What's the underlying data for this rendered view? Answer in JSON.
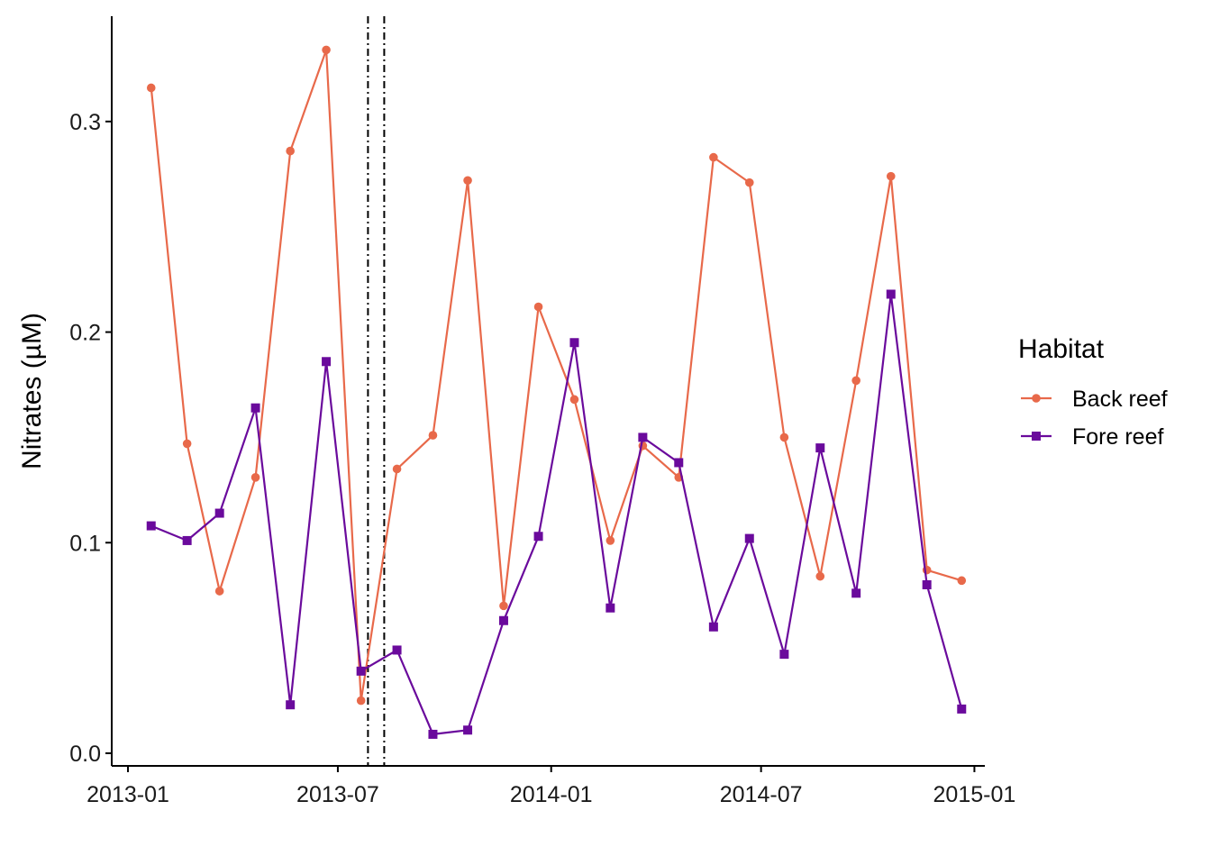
{
  "chart_data": {
    "type": "line",
    "xlabel": "",
    "ylabel": "Nitrates (µM)",
    "ylim": [
      -0.006,
      0.35
    ],
    "xlim": [
      "2012-12-18",
      "2015-01-10"
    ],
    "x_ticks": [
      "2013-01-01",
      "2013-07-01",
      "2014-01-01",
      "2014-07-01",
      "2015-01-01"
    ],
    "x_tick_labels": [
      "2013-01",
      "2013-07",
      "2014-01",
      "2014-07",
      "2015-01"
    ],
    "y_ticks": [
      0.0,
      0.1,
      0.2,
      0.3
    ],
    "y_tick_labels": [
      "0.0",
      "0.1",
      "0.2",
      "0.3"
    ],
    "grid": false,
    "vlines": [
      {
        "date": "2013-07-27",
        "style": "dashdot",
        "color": "#000000"
      },
      {
        "date": "2013-08-10",
        "style": "dashdot",
        "color": "#000000"
      }
    ],
    "legend": {
      "title": "Habitat",
      "position": "right"
    },
    "series": [
      {
        "name": "Back reef",
        "color": "#e8694a",
        "marker": "circle",
        "points": [
          {
            "x": "2013-01-21",
            "y": 0.316
          },
          {
            "x": "2013-02-21",
            "y": 0.147
          },
          {
            "x": "2013-03-21",
            "y": 0.077
          },
          {
            "x": "2013-04-21",
            "y": 0.131
          },
          {
            "x": "2013-05-21",
            "y": 0.286
          },
          {
            "x": "2013-06-21",
            "y": 0.334
          },
          {
            "x": "2013-07-21",
            "y": 0.025
          },
          {
            "x": "2013-08-21",
            "y": 0.135
          },
          {
            "x": "2013-09-21",
            "y": 0.151
          },
          {
            "x": "2013-10-21",
            "y": 0.272
          },
          {
            "x": "2013-11-21",
            "y": 0.07
          },
          {
            "x": "2013-12-21",
            "y": 0.212
          },
          {
            "x": "2014-01-21",
            "y": 0.168
          },
          {
            "x": "2014-02-21",
            "y": 0.101
          },
          {
            "x": "2014-03-21",
            "y": 0.146
          },
          {
            "x": "2014-04-21",
            "y": 0.131
          },
          {
            "x": "2014-05-21",
            "y": 0.283
          },
          {
            "x": "2014-06-21",
            "y": 0.271
          },
          {
            "x": "2014-07-21",
            "y": 0.15
          },
          {
            "x": "2014-08-21",
            "y": 0.084
          },
          {
            "x": "2014-09-21",
            "y": 0.177
          },
          {
            "x": "2014-10-21",
            "y": 0.274
          },
          {
            "x": "2014-11-21",
            "y": 0.087
          },
          {
            "x": "2014-12-21",
            "y": 0.082
          }
        ]
      },
      {
        "name": "Fore reef",
        "color": "#6a0a9c",
        "marker": "square",
        "points": [
          {
            "x": "2013-01-21",
            "y": 0.108
          },
          {
            "x": "2013-02-21",
            "y": 0.101
          },
          {
            "x": "2013-03-21",
            "y": 0.114
          },
          {
            "x": "2013-04-21",
            "y": 0.164
          },
          {
            "x": "2013-05-21",
            "y": 0.023
          },
          {
            "x": "2013-06-21",
            "y": 0.186
          },
          {
            "x": "2013-07-21",
            "y": 0.039
          },
          {
            "x": "2013-08-21",
            "y": 0.049
          },
          {
            "x": "2013-09-21",
            "y": 0.009
          },
          {
            "x": "2013-10-21",
            "y": 0.011
          },
          {
            "x": "2013-11-21",
            "y": 0.063
          },
          {
            "x": "2013-12-21",
            "y": 0.103
          },
          {
            "x": "2014-01-21",
            "y": 0.195
          },
          {
            "x": "2014-02-21",
            "y": 0.069
          },
          {
            "x": "2014-03-21",
            "y": 0.15
          },
          {
            "x": "2014-04-21",
            "y": 0.138
          },
          {
            "x": "2014-05-21",
            "y": 0.06
          },
          {
            "x": "2014-06-21",
            "y": 0.102
          },
          {
            "x": "2014-07-21",
            "y": 0.047
          },
          {
            "x": "2014-08-21",
            "y": 0.145
          },
          {
            "x": "2014-09-21",
            "y": 0.076
          },
          {
            "x": "2014-10-21",
            "y": 0.218
          },
          {
            "x": "2014-11-21",
            "y": 0.08
          },
          {
            "x": "2014-12-21",
            "y": 0.021
          }
        ]
      }
    ]
  }
}
